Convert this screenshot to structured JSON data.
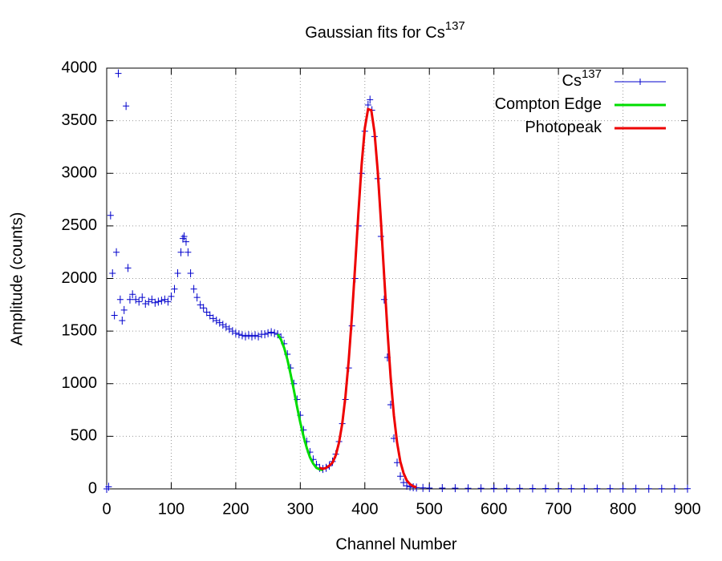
{
  "chart_data": {
    "type": "scatter-fit",
    "title": "Gaussian fits for Cs",
    "title_superscript": "137",
    "x_label": "Channel Number",
    "y_label": "Amplitude (counts)",
    "xlim": [
      0,
      900
    ],
    "ylim": [
      0,
      4000
    ],
    "xticks": [
      0,
      100,
      200,
      300,
      400,
      500,
      600,
      700,
      800,
      900
    ],
    "yticks": [
      0,
      500,
      1000,
      1500,
      2000,
      2500,
      3000,
      3500,
      4000
    ],
    "grid": true,
    "legend": "upper-right",
    "series": [
      {
        "name": "Cs",
        "name_superscript": "137",
        "style": "points",
        "color": "#0000cc",
        "x": [
          0,
          3,
          6,
          9,
          12,
          15,
          18,
          21,
          24,
          27,
          30,
          33,
          36,
          40,
          45,
          50,
          55,
          60,
          65,
          70,
          75,
          80,
          85,
          90,
          95,
          100,
          105,
          110,
          115,
          118,
          120,
          123,
          126,
          130,
          135,
          140,
          145,
          150,
          155,
          160,
          165,
          170,
          175,
          180,
          185,
          190,
          195,
          200,
          205,
          210,
          215,
          220,
          225,
          230,
          235,
          240,
          245,
          250,
          255,
          260,
          265,
          270,
          275,
          280,
          285,
          290,
          295,
          300,
          305,
          310,
          315,
          320,
          325,
          330,
          335,
          340,
          345,
          350,
          355,
          360,
          365,
          370,
          375,
          380,
          385,
          390,
          395,
          400,
          405,
          408,
          411,
          415,
          420,
          425,
          430,
          435,
          440,
          445,
          450,
          455,
          460,
          465,
          470,
          475,
          480,
          490,
          500,
          520,
          540,
          560,
          580,
          600,
          620,
          640,
          660,
          680,
          700,
          720,
          740,
          760,
          780,
          800,
          820,
          840,
          860,
          880,
          900
        ],
        "values": [
          0,
          20,
          2600,
          2050,
          1650,
          2250,
          3950,
          1800,
          1600,
          1700,
          3640,
          2100,
          1800,
          1850,
          1800,
          1780,
          1820,
          1760,
          1780,
          1800,
          1770,
          1780,
          1790,
          1800,
          1780,
          1830,
          1900,
          2050,
          2250,
          2380,
          2400,
          2350,
          2250,
          2050,
          1900,
          1820,
          1750,
          1720,
          1680,
          1650,
          1620,
          1600,
          1580,
          1560,
          1540,
          1520,
          1500,
          1480,
          1470,
          1460,
          1450,
          1460,
          1450,
          1460,
          1450,
          1470,
          1470,
          1480,
          1490,
          1480,
          1470,
          1440,
          1380,
          1280,
          1150,
          1000,
          850,
          700,
          560,
          450,
          350,
          280,
          230,
          200,
          190,
          200,
          220,
          260,
          330,
          450,
          620,
          850,
          1150,
          1550,
          2000,
          2500,
          3000,
          3400,
          3650,
          3700,
          3600,
          3350,
          2950,
          2400,
          1800,
          1250,
          800,
          480,
          250,
          120,
          60,
          30,
          20,
          15,
          12,
          10,
          8,
          8,
          7,
          6,
          6,
          5,
          5,
          5,
          4,
          4,
          4,
          3,
          3,
          3,
          3,
          2,
          2,
          2,
          2,
          2,
          2
        ]
      },
      {
        "name": "Compton Edge",
        "style": "line",
        "color": "#00dd00",
        "x": [
          265,
          270,
          275,
          280,
          285,
          290,
          295,
          300,
          305,
          310,
          315,
          320,
          325,
          330,
          335
        ],
        "values": [
          1470,
          1420,
          1340,
          1230,
          1090,
          940,
          780,
          630,
          500,
          390,
          300,
          240,
          200,
          185,
          180
        ]
      },
      {
        "name": "Photopeak",
        "style": "line",
        "color": "#ee0000",
        "x": [
          330,
          335,
          340,
          345,
          350,
          355,
          360,
          365,
          370,
          375,
          380,
          385,
          390,
          395,
          400,
          405,
          410,
          415,
          420,
          425,
          430,
          435,
          440,
          445,
          450,
          455,
          460,
          465,
          470,
          475,
          480
        ],
        "values": [
          200,
          190,
          200,
          220,
          250,
          320,
          440,
          620,
          880,
          1220,
          1640,
          2120,
          2620,
          3080,
          3430,
          3610,
          3600,
          3390,
          3020,
          2540,
          2020,
          1510,
          1060,
          700,
          440,
          260,
          150,
          80,
          45,
          25,
          15
        ]
      }
    ]
  }
}
